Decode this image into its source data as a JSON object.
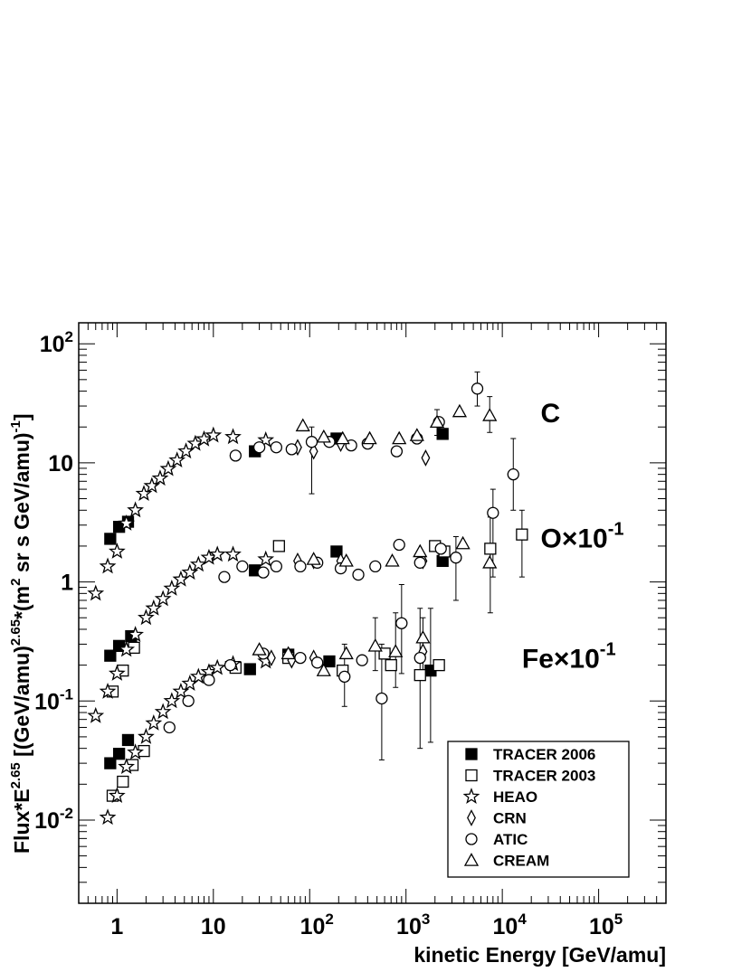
{
  "chart_data": {
    "type": "scatter",
    "xscale": "log",
    "yscale": "log",
    "xlim": [
      0.4,
      500000
    ],
    "ylim": [
      0.002,
      150
    ],
    "xlabel": "kinetic Energy [GeV/amu]",
    "ylabel": {
      "base": "Flux*E",
      "exp1": "2.65",
      "mid": " [(GeV/amu)",
      "exp2": "2.65",
      "mid2": "*(m",
      "exp3": "2",
      "tail": " sr s GeV/amu)",
      "exp4": "-1",
      "end": "]"
    },
    "x_ticks": [
      {
        "value": 1,
        "base": "1",
        "exp": ""
      },
      {
        "value": 10,
        "base": "10",
        "exp": ""
      },
      {
        "value": 100,
        "base": "10",
        "exp": "2"
      },
      {
        "value": 1000,
        "base": "10",
        "exp": "3"
      },
      {
        "value": 10000,
        "base": "10",
        "exp": "4"
      },
      {
        "value": 100000,
        "base": "10",
        "exp": "5"
      }
    ],
    "y_ticks": [
      {
        "value": 0.01,
        "base": "10",
        "exp": "-2"
      },
      {
        "value": 0.1,
        "base": "10",
        "exp": "-1"
      },
      {
        "value": 1,
        "base": "1",
        "exp": ""
      },
      {
        "value": 10,
        "base": "10",
        "exp": ""
      },
      {
        "value": 100,
        "base": "10",
        "exp": "2"
      }
    ],
    "annotations": [
      {
        "base": "C",
        "exp": "",
        "x": 25000,
        "y": 22
      },
      {
        "base": "O×10",
        "exp": "-1",
        "x": 25000,
        "y": 1.95
      },
      {
        "base": "Fe×10",
        "exp": "-1",
        "x": 16000,
        "y": 0.19
      }
    ],
    "legend_position": "bottom-right",
    "series": [
      {
        "name": "TRACER 2006",
        "marker": "square-filled",
        "points": [
          [
            0.85,
            2.3
          ],
          [
            1.05,
            2.9
          ],
          [
            1.3,
            3.2
          ],
          [
            27,
            12.5
          ],
          [
            190,
            16
          ],
          [
            2400,
            17.5
          ],
          [
            0.85,
            0.24
          ],
          [
            1.05,
            0.29
          ],
          [
            1.4,
            0.35
          ],
          [
            27,
            1.25
          ],
          [
            190,
            1.8
          ],
          [
            2400,
            1.5
          ],
          [
            0.85,
            0.03
          ],
          [
            1.05,
            0.036
          ],
          [
            1.3,
            0.047
          ],
          [
            24,
            0.185
          ],
          [
            60,
            0.245
          ],
          [
            160,
            0.215
          ],
          [
            1800,
            0.18
          ]
        ]
      },
      {
        "name": "TRACER 2003",
        "marker": "square-open",
        "points": [
          [
            48,
            2.0
          ],
          [
            2000,
            2.0
          ],
          [
            2500,
            1.8
          ],
          [
            7500,
            1.9
          ],
          [
            16000,
            2.5
          ],
          [
            0.9,
            0.12
          ],
          [
            1.15,
            0.18
          ],
          [
            1.5,
            0.28
          ],
          [
            0.9,
            0.016
          ],
          [
            1.15,
            0.021
          ],
          [
            1.45,
            0.029
          ],
          [
            1.9,
            0.038
          ],
          [
            17,
            0.19
          ],
          [
            60,
            0.23
          ],
          [
            220,
            0.18
          ],
          [
            600,
            0.25
          ],
          [
            700,
            0.2
          ],
          [
            1400,
            0.165
          ],
          [
            2200,
            0.2
          ]
        ]
      },
      {
        "name": "HEAO",
        "marker": "star-open",
        "points": [
          [
            0.6,
            0.8
          ],
          [
            0.8,
            1.35
          ],
          [
            1.0,
            1.8
          ],
          [
            1.25,
            3.1
          ],
          [
            1.55,
            4.0
          ],
          [
            1.9,
            5.5
          ],
          [
            2.3,
            6.4
          ],
          [
            2.8,
            7.4
          ],
          [
            3.4,
            8.9
          ],
          [
            4.2,
            10.5
          ],
          [
            5.2,
            12.5
          ],
          [
            6.5,
            14.5
          ],
          [
            8.0,
            15.8
          ],
          [
            10,
            17
          ],
          [
            16,
            16.5
          ],
          [
            35,
            15.5
          ],
          [
            0.6,
            0.075
          ],
          [
            0.8,
            0.12
          ],
          [
            1.0,
            0.17
          ],
          [
            1.25,
            0.27
          ],
          [
            1.55,
            0.36
          ],
          [
            2.0,
            0.5
          ],
          [
            2.4,
            0.6
          ],
          [
            3.0,
            0.72
          ],
          [
            3.7,
            0.88
          ],
          [
            4.6,
            1.05
          ],
          [
            5.7,
            1.2
          ],
          [
            7.0,
            1.4
          ],
          [
            9.0,
            1.6
          ],
          [
            11,
            1.7
          ],
          [
            16,
            1.7
          ],
          [
            35,
            1.55
          ],
          [
            0.8,
            0.0105
          ],
          [
            1.0,
            0.016
          ],
          [
            1.25,
            0.028
          ],
          [
            1.55,
            0.037
          ],
          [
            2.0,
            0.05
          ],
          [
            2.4,
            0.065
          ],
          [
            3.0,
            0.081
          ],
          [
            3.7,
            0.1
          ],
          [
            4.6,
            0.12
          ],
          [
            5.7,
            0.14
          ],
          [
            7.0,
            0.16
          ],
          [
            9.0,
            0.175
          ],
          [
            11,
            0.19
          ],
          [
            16,
            0.205
          ],
          [
            35,
            0.215
          ]
        ]
      },
      {
        "name": "CRN",
        "marker": "diamond-open",
        "points": [
          [
            75,
            13.5
          ],
          [
            110,
            12.5
          ],
          [
            210,
            14.5
          ],
          [
            1600,
            11
          ],
          [
            75,
            1.5
          ],
          [
            110,
            1.5
          ],
          [
            210,
            1.5
          ],
          [
            1500,
            1.5
          ],
          [
            40,
            0.23
          ],
          [
            65,
            0.22
          ],
          [
            110,
            0.23
          ],
          [
            1500,
            0.26
          ]
        ]
      },
      {
        "name": "ATIC",
        "marker": "circle-open",
        "points": [
          [
            17,
            11.5
          ],
          [
            30,
            13.5
          ],
          [
            45,
            13.5
          ],
          [
            65,
            13
          ],
          [
            105,
            15
          ],
          [
            160,
            15
          ],
          [
            270,
            14
          ],
          [
            400,
            14.5
          ],
          [
            800,
            12.5
          ],
          [
            1300,
            16
          ],
          [
            2200,
            22
          ],
          [
            5500,
            42
          ],
          [
            13,
            1.1
          ],
          [
            20,
            1.35
          ],
          [
            33,
            1.2
          ],
          [
            45,
            1.35
          ],
          [
            80,
            1.35
          ],
          [
            120,
            1.45
          ],
          [
            210,
            1.3
          ],
          [
            320,
            1.15
          ],
          [
            480,
            1.35
          ],
          [
            850,
            2.05
          ],
          [
            1400,
            1.45
          ],
          [
            2300,
            1.9
          ],
          [
            3300,
            1.6
          ],
          [
            8000,
            3.8
          ],
          [
            13000,
            8
          ],
          [
            3.5,
            0.06
          ],
          [
            5.5,
            0.1
          ],
          [
            9,
            0.15
          ],
          [
            15,
            0.2
          ],
          [
            33,
            0.25
          ],
          [
            80,
            0.23
          ],
          [
            120,
            0.21
          ],
          [
            230,
            0.16
          ],
          [
            350,
            0.22
          ],
          [
            560,
            0.105
          ],
          [
            900,
            0.45
          ],
          [
            1400,
            0.23
          ]
        ]
      },
      {
        "name": "CREAM",
        "marker": "triangle-open",
        "points": [
          [
            85,
            20.5
          ],
          [
            140,
            16.5
          ],
          [
            220,
            16
          ],
          [
            420,
            16
          ],
          [
            850,
            16
          ],
          [
            1300,
            17
          ],
          [
            2100,
            22
          ],
          [
            3600,
            27
          ],
          [
            7400,
            25
          ],
          [
            110,
            1.55
          ],
          [
            240,
            1.5
          ],
          [
            720,
            1.5
          ],
          [
            1400,
            1.8
          ],
          [
            3900,
            2.1
          ],
          [
            7400,
            1.45
          ],
          [
            30,
            0.27
          ],
          [
            60,
            0.25
          ],
          [
            140,
            0.18
          ],
          [
            240,
            0.25
          ],
          [
            480,
            0.29
          ],
          [
            780,
            0.26
          ],
          [
            1500,
            0.34
          ]
        ]
      }
    ],
    "error_bars": [
      {
        "x": 105,
        "lo": 5.5,
        "hi": 20
      },
      {
        "x": 5500,
        "lo": 30,
        "hi": 58
      },
      {
        "x": 7400,
        "lo": 18,
        "hi": 36
      },
      {
        "x": 2100,
        "lo": 17,
        "hi": 28
      },
      {
        "x": 13000,
        "lo": 4,
        "hi": 16
      },
      {
        "x": 8000,
        "lo": 1.1,
        "hi": 6
      },
      {
        "x": 7500,
        "lo": 0.55,
        "hi": 3.5
      },
      {
        "x": 3300,
        "lo": 0.7,
        "hi": 2.4
      },
      {
        "x": 16000,
        "lo": 1.1,
        "hi": 4
      },
      {
        "x": 560,
        "lo": 0.032,
        "hi": 0.3
      },
      {
        "x": 900,
        "lo": 0.17,
        "hi": 0.95
      },
      {
        "x": 1400,
        "lo": 0.04,
        "hi": 0.6
      },
      {
        "x": 1800,
        "lo": 0.045,
        "hi": 0.6
      },
      {
        "x": 780,
        "lo": 0.13,
        "hi": 0.55
      },
      {
        "x": 230,
        "lo": 0.09,
        "hi": 0.3
      },
      {
        "x": 480,
        "lo": 0.18,
        "hi": 0.5
      },
      {
        "x": 1500,
        "lo": 0.16,
        "hi": 0.5
      }
    ]
  }
}
